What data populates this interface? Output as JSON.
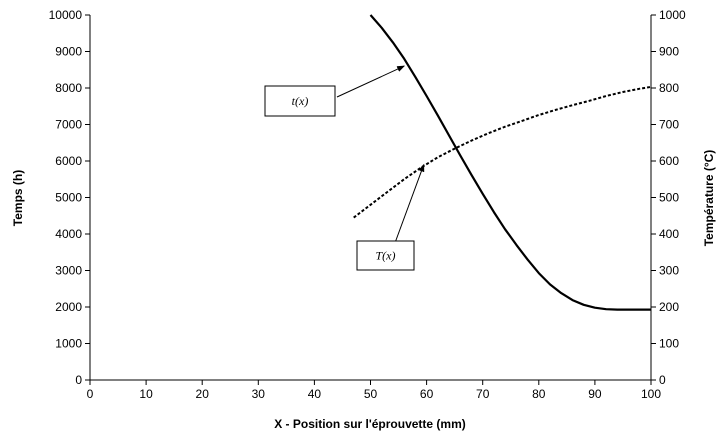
{
  "chart_data": {
    "type": "line",
    "title": "",
    "xlabel": "X - Position sur l'éprouvette (mm)",
    "ylabel": "Temps (h)",
    "y2label": "Température (°C)",
    "xlim": [
      0,
      100
    ],
    "ylim": [
      0,
      10000
    ],
    "y2lim": [
      0,
      1000
    ],
    "x_ticks": [
      0,
      10,
      20,
      30,
      40,
      50,
      60,
      70,
      80,
      90,
      100
    ],
    "y_ticks": [
      0,
      1000,
      2000,
      3000,
      4000,
      5000,
      6000,
      7000,
      8000,
      9000,
      10000
    ],
    "y2_ticks": [
      0,
      100,
      200,
      300,
      400,
      500,
      600,
      700,
      800,
      900,
      1000
    ],
    "grid": false,
    "legend": "none",
    "series": [
      {
        "axis": "left",
        "style": "solid",
        "x": [
          50,
          52,
          54,
          56,
          58,
          60,
          62,
          64,
          66,
          68,
          70,
          72,
          74,
          76,
          78,
          80,
          82,
          84,
          86,
          88,
          90,
          92,
          94,
          96,
          98,
          100
        ],
        "values": [
          10000,
          9650,
          9250,
          8800,
          8300,
          7780,
          7250,
          6700,
          6150,
          5620,
          5100,
          4600,
          4130,
          3700,
          3300,
          2930,
          2620,
          2380,
          2190,
          2060,
          1980,
          1940,
          1930,
          1930,
          1930,
          1930
        ]
      },
      {
        "axis": "right",
        "style": "dashed",
        "x": [
          47,
          50,
          53,
          56,
          59,
          62,
          65,
          68,
          71,
          74,
          77,
          80,
          83,
          86,
          89,
          92,
          95,
          98,
          100
        ],
        "values": [
          445,
          480,
          515,
          550,
          582,
          610,
          634,
          656,
          676,
          694,
          710,
          726,
          740,
          753,
          765,
          778,
          789,
          798,
          803
        ]
      }
    ],
    "annotations": [
      {
        "text": "t(x)",
        "points_to": [
          56,
          8600
        ],
        "axis": "left"
      },
      {
        "text": "T(x)",
        "points_to": [
          59.5,
          590
        ],
        "axis": "right"
      }
    ]
  }
}
